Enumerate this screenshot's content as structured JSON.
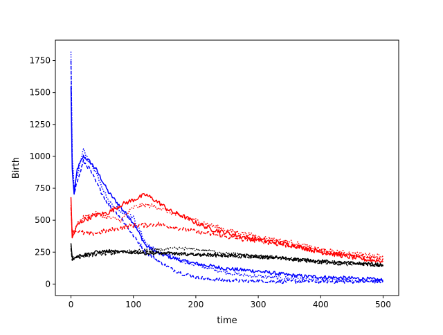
{
  "chart_data": {
    "type": "line",
    "title": "",
    "xlabel": "time",
    "ylabel": "Birth",
    "xlim": [
      -25,
      525
    ],
    "ylim": [
      -90,
      1910
    ],
    "grid": false,
    "legend": "none",
    "x_ticks": [
      0,
      100,
      200,
      300,
      400,
      500
    ],
    "y_ticks": [
      0,
      250,
      500,
      750,
      1000,
      1250,
      1500,
      1750
    ],
    "x_tick_labels": [
      "0",
      "100",
      "200",
      "300",
      "400",
      "500"
    ],
    "y_tick_labels": [
      "0",
      "250",
      "500",
      "750",
      "1000",
      "1250",
      "1500",
      "1750"
    ],
    "x": [
      0,
      2,
      5,
      10,
      20,
      30,
      40,
      60,
      80,
      100,
      120,
      140,
      160,
      180,
      200,
      225,
      250,
      275,
      300,
      325,
      350,
      375,
      400,
      425,
      450,
      475,
      500
    ],
    "series": [
      {
        "color": "#0000ff",
        "dash": "solid",
        "noise": 15,
        "values": [
          1550,
          900,
          700,
          900,
          1000,
          960,
          900,
          720,
          600,
          480,
          300,
          240,
          210,
          180,
          160,
          140,
          120,
          110,
          100,
          85,
          70,
          60,
          55,
          50,
          45,
          40,
          30
        ]
      },
      {
        "color": "#0000ff",
        "dash": "dotted",
        "noise": 15,
        "values": [
          1820,
          1000,
          760,
          850,
          1050,
          950,
          880,
          650,
          570,
          520,
          320,
          250,
          220,
          180,
          150,
          120,
          90,
          70,
          60,
          50,
          45,
          40,
          35,
          30,
          30,
          25,
          20
        ]
      },
      {
        "color": "#0000ff",
        "dash": "dashed",
        "noise": 15,
        "values": [
          1750,
          950,
          720,
          800,
          960,
          900,
          800,
          620,
          520,
          380,
          250,
          180,
          120,
          80,
          55,
          35,
          30,
          25,
          25,
          20,
          20,
          20,
          20,
          20,
          20,
          20,
          20
        ]
      },
      {
        "color": "#ff0000",
        "dash": "solid",
        "noise": 18,
        "values": [
          680,
          360,
          400,
          460,
          500,
          520,
          540,
          560,
          620,
          660,
          700,
          640,
          570,
          530,
          480,
          430,
          400,
          370,
          350,
          330,
          310,
          280,
          250,
          230,
          210,
          190,
          180
        ]
      },
      {
        "color": "#ff0000",
        "dash": "dotted",
        "noise": 18,
        "values": [
          620,
          380,
          420,
          470,
          520,
          540,
          550,
          520,
          500,
          600,
          620,
          600,
          560,
          520,
          500,
          460,
          420,
          400,
          370,
          350,
          330,
          300,
          270,
          250,
          240,
          230,
          220
        ]
      },
      {
        "color": "#ff0000",
        "dash": "dashed",
        "noise": 18,
        "values": [
          600,
          400,
          410,
          420,
          400,
          390,
          400,
          420,
          440,
          460,
          460,
          470,
          450,
          430,
          410,
          390,
          370,
          350,
          340,
          320,
          300,
          280,
          260,
          240,
          220,
          210,
          200
        ]
      },
      {
        "color": "#000000",
        "dash": "solid",
        "noise": 12,
        "values": [
          320,
          200,
          210,
          220,
          230,
          240,
          250,
          260,
          250,
          250,
          240,
          240,
          240,
          235,
          230,
          230,
          225,
          225,
          215,
          210,
          200,
          190,
          180,
          170,
          165,
          160,
          150
        ]
      },
      {
        "color": "#000000",
        "dash": "dotted",
        "noise": 12,
        "values": [
          300,
          200,
          205,
          210,
          220,
          230,
          240,
          250,
          255,
          260,
          265,
          270,
          275,
          280,
          270,
          260,
          240,
          230,
          220,
          210,
          200,
          185,
          175,
          170,
          160,
          155,
          145
        ]
      },
      {
        "color": "#000000",
        "dash": "dashed",
        "noise": 12,
        "values": [
          280,
          190,
          200,
          210,
          215,
          220,
          230,
          240,
          245,
          250,
          250,
          245,
          240,
          235,
          230,
          225,
          220,
          215,
          210,
          200,
          190,
          180,
          170,
          160,
          155,
          150,
          140
        ]
      }
    ]
  }
}
